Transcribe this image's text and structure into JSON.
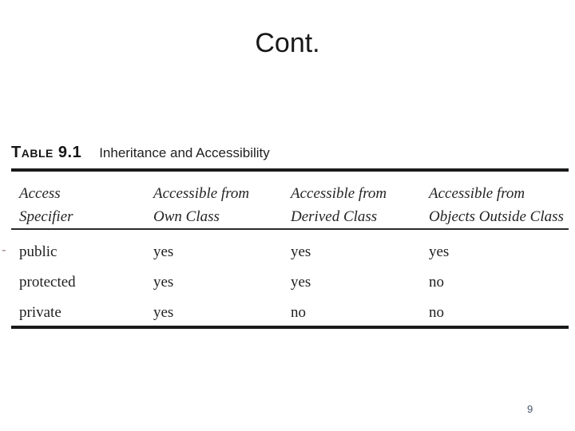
{
  "slide": {
    "title": "Cont.",
    "page_number": "9",
    "bullet_dash": "-"
  },
  "figure": {
    "caption_label": "Table 9.1",
    "caption_title": "Inheritance and Accessibility",
    "columns": [
      "Access\nSpecifier",
      "Accessible from\nOwn Class",
      "Accessible from\nDerived Class",
      "Accessible from\nObjects Outside Class"
    ],
    "rows": [
      {
        "specifier": "public",
        "own_class": "yes",
        "derived_class": "yes",
        "outside_class": "yes"
      },
      {
        "specifier": "protected",
        "own_class": "yes",
        "derived_class": "yes",
        "outside_class": "no"
      },
      {
        "specifier": "private",
        "own_class": "yes",
        "derived_class": "no",
        "outside_class": "no"
      }
    ]
  },
  "colors": {
    "title_text": "#171717",
    "table_ink": "#1a1a1a",
    "page_number_text": "#44546a",
    "background": "#ffffff"
  }
}
